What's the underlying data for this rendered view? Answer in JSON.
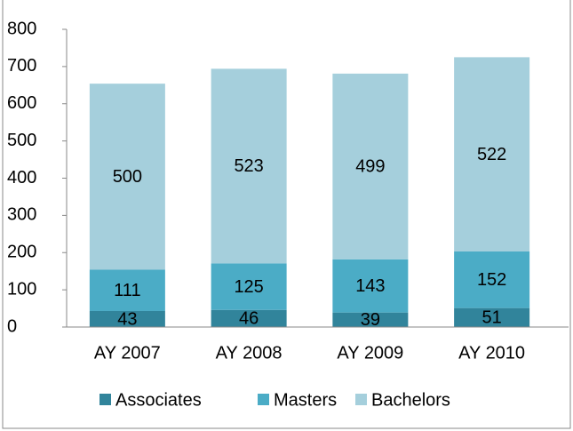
{
  "chart_data": {
    "type": "stacked_bar",
    "categories": [
      "AY 2007",
      "AY 2008",
      "AY 2009",
      "AY 2010"
    ],
    "series": [
      {
        "name": "Associates",
        "color": "#31849b",
        "values": [
          43,
          46,
          39,
          51
        ]
      },
      {
        "name": "Masters",
        "color": "#4bacc6",
        "values": [
          111,
          125,
          143,
          152
        ]
      },
      {
        "name": "Bachelors",
        "color": "#a5cfdc",
        "values": [
          500,
          523,
          499,
          522
        ]
      }
    ],
    "ylim": [
      0,
      800
    ],
    "yticks": [
      0,
      100,
      200,
      300,
      400,
      500,
      600,
      700,
      800
    ],
    "grid": false,
    "legend": "bottom"
  }
}
